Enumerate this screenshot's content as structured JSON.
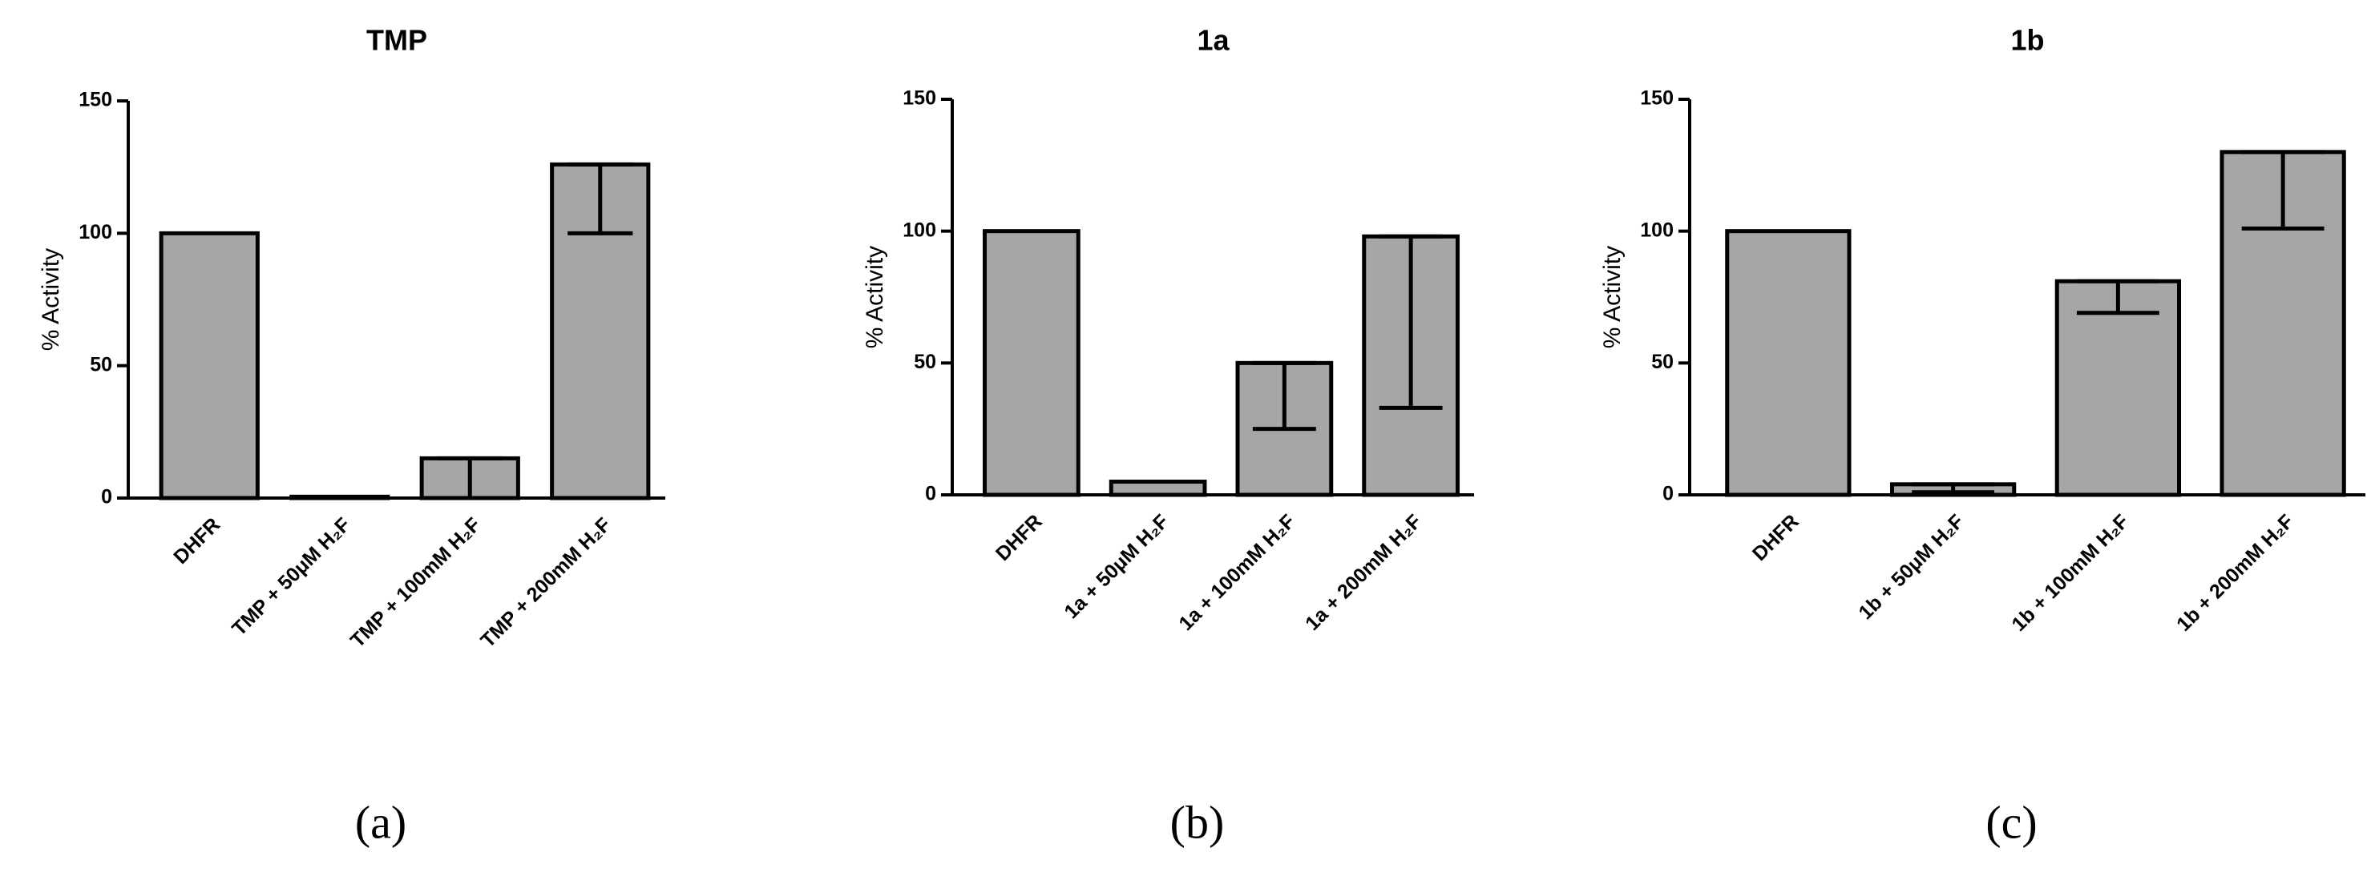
{
  "chart_data": [
    {
      "type": "bar",
      "title": "TMP",
      "y_label": "% Activity",
      "label": "(a)",
      "categories": [
        "DHFR",
        "TMP + 50μM H₂F",
        "TMP + 100mM H₂F",
        "TMP + 200mM H₂F"
      ],
      "values": [
        100,
        0.5,
        15,
        126
      ],
      "errors": [
        0,
        0,
        15,
        26
      ],
      "color": "#a6a6a6",
      "ylim": [
        0,
        150
      ],
      "yticks": [
        0,
        50,
        100,
        150
      ]
    },
    {
      "type": "bar",
      "title": "1a",
      "y_label": "% Activity",
      "label": "(b)",
      "categories": [
        "DHFR",
        "1a + 50μM H₂F",
        "1a + 100mM H₂F",
        "1a + 200mM H₂F"
      ],
      "values": [
        100,
        5,
        50,
        98
      ],
      "errors": [
        0,
        0,
        25,
        65
      ],
      "color": "#a6a6a6",
      "ylim": [
        0,
        150
      ],
      "yticks": [
        0,
        50,
        100,
        150
      ]
    },
    {
      "type": "bar",
      "title": "1b",
      "y_label": "% Activity",
      "label": "(c)",
      "categories": [
        "DHFR",
        "1b + 50μM H₂F",
        "1b + 100mM H₂F",
        "1b + 200mM H₂F"
      ],
      "values": [
        100,
        4,
        81,
        130
      ],
      "errors": [
        0,
        3,
        12,
        29
      ],
      "color": "#a6a6a6",
      "ylim": [
        0,
        150
      ],
      "yticks": [
        0,
        50,
        100,
        150
      ]
    }
  ]
}
